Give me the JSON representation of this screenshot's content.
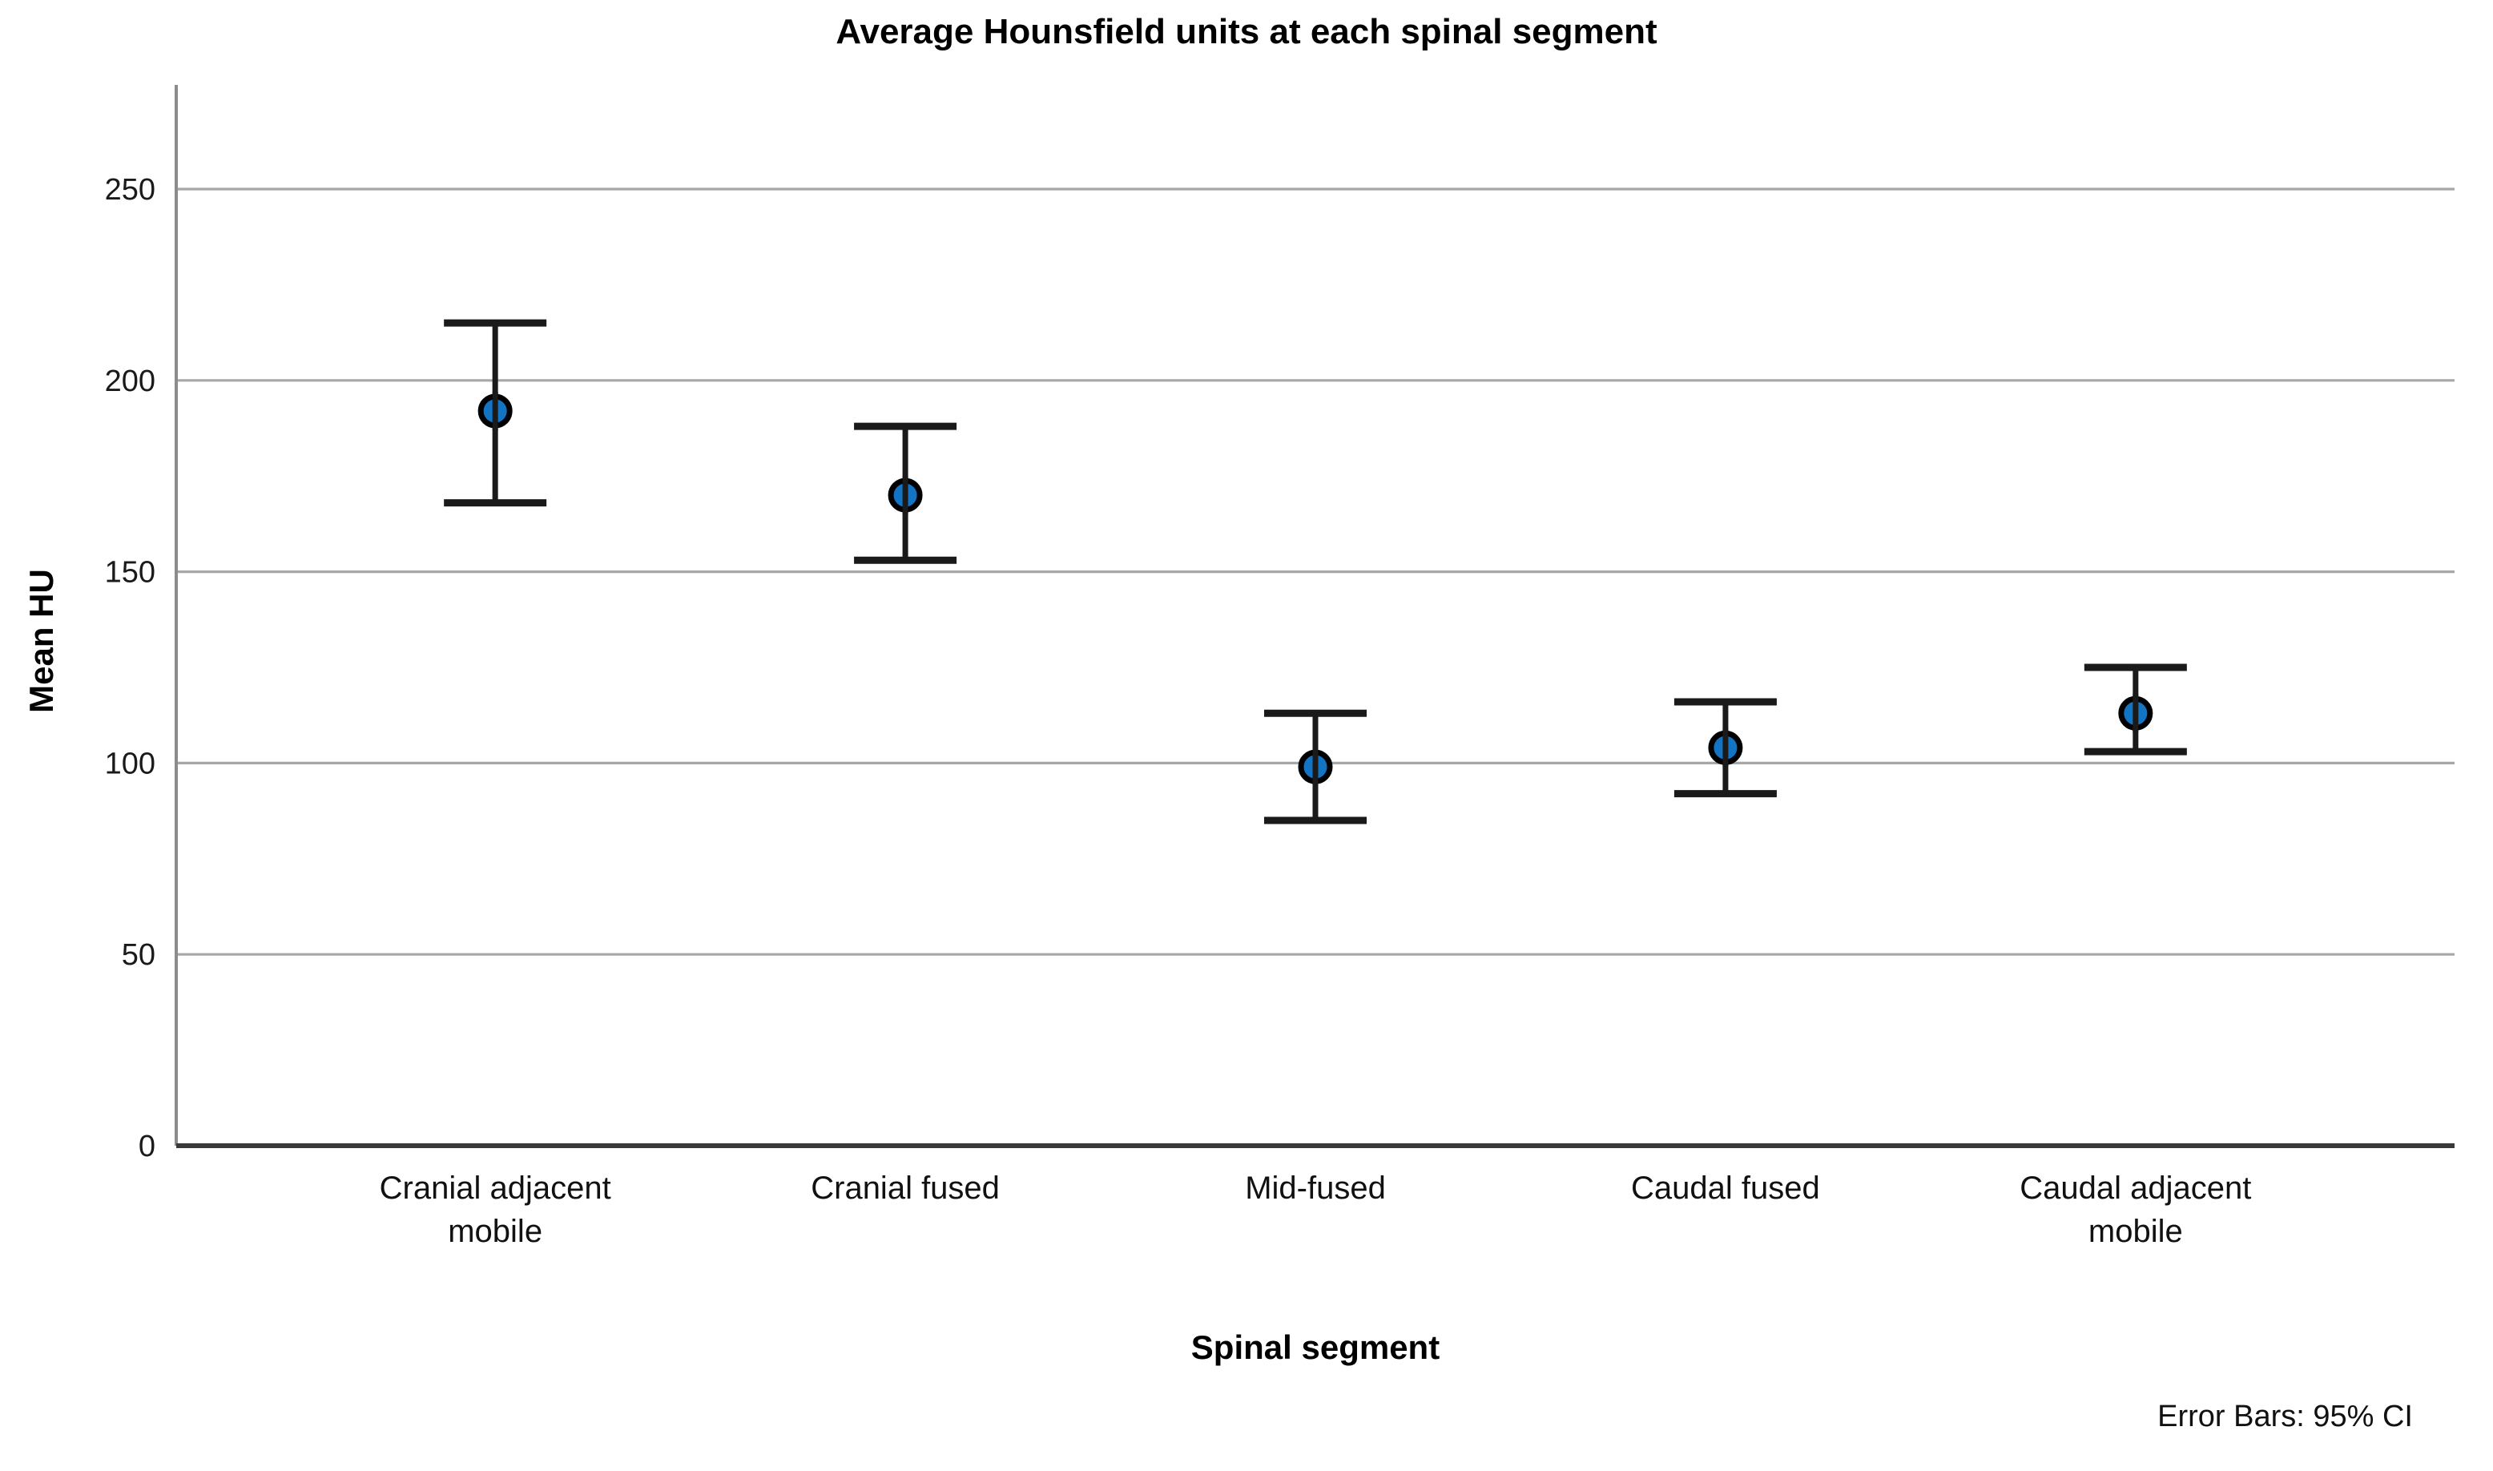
{
  "figure": {
    "title": "Average Hounsfield units at each spinal segment",
    "y_axis_title": "Mean HU",
    "x_axis_title": "Spinal segment",
    "footnote": "Error Bars: 95% CI"
  },
  "chart_data": {
    "type": "scatter",
    "subtype": "mean-points-with-95ci-error-bars",
    "title": "Average Hounsfield units at each spinal segment",
    "xlabel": "Spinal segment",
    "ylabel": "Mean HU",
    "categories": [
      "Cranial adjacent mobile",
      "Cranial fused",
      "Mid-fused",
      "Caudal fused",
      "Caudal adjacent mobile"
    ],
    "categories_wrapped": [
      [
        "Cranial adjacent",
        "mobile"
      ],
      [
        "Cranial fused"
      ],
      [
        "Mid-fused"
      ],
      [
        "Caudal fused"
      ],
      [
        "Caudal adjacent",
        "mobile"
      ]
    ],
    "series": [
      {
        "name": "Mean HU",
        "values": [
          192,
          170,
          99,
          104,
          113
        ],
        "ci_low": [
          168,
          153,
          85,
          92,
          103
        ],
        "ci_high": [
          215,
          188,
          113,
          116,
          125
        ]
      }
    ],
    "ylim": [
      0,
      277
    ],
    "yticks": [
      0,
      50,
      100,
      150,
      200,
      250
    ],
    "grid": "horizontal-only",
    "legend_position": "none",
    "annotation": "Error Bars: 95% CI",
    "colors": {
      "marker_fill": "#1474c4",
      "marker_stroke": "#000000",
      "error_bar": "#1a1a1a",
      "gridline": "#a7a7a7",
      "y_axis_line": "#8c8c8c",
      "x_axis_line": "#3a3a3a",
      "tick_text": "#1a1a1a"
    }
  }
}
